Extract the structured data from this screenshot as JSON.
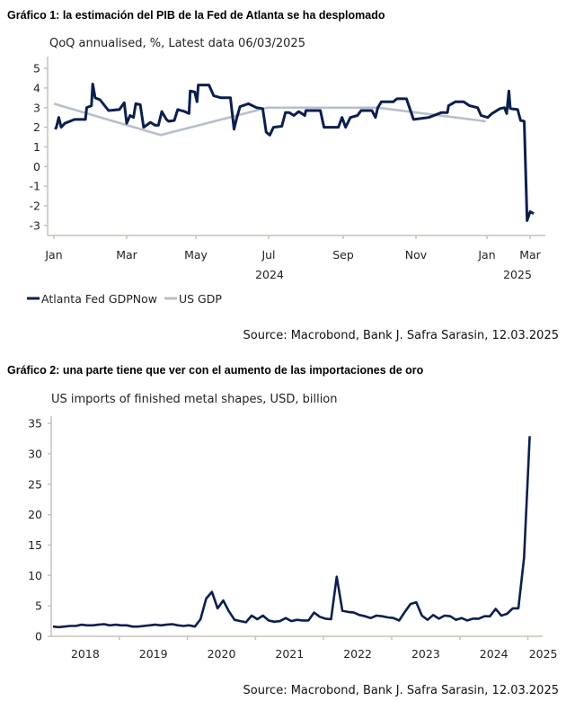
{
  "colors": {
    "gdpnow": "#0b1f4f",
    "usgdp": "#b8bfcc",
    "axis": "#c9c2b8",
    "series2": "#0b1f4f"
  },
  "chart_data": [
    {
      "type": "line",
      "title": "Gráfico 1: la estimación del PIB de la Fed de Atlanta se ha desplomado",
      "subtitle": "QoQ annualised, %, Latest data 06/03/2025",
      "source": "Source: Macrobond, Bank J. Safra Sarasin, 12.03.2025",
      "ylim": [
        -3,
        5
      ],
      "yticks": [
        "5",
        "4",
        "3",
        "2",
        "1",
        "0",
        "-1",
        "-2",
        "-3"
      ],
      "xticks": [
        {
          "date": "2024-01-01",
          "label": "Jan"
        },
        {
          "date": "2024-03-01",
          "label": "Mar"
        },
        {
          "date": "2024-05-01",
          "label": "May"
        },
        {
          "date": "2024-07-01",
          "label": "Jul"
        },
        {
          "date": "2024-09-01",
          "label": "Sep"
        },
        {
          "date": "2024-11-01",
          "label": "Nov"
        },
        {
          "date": "2025-01-01",
          "label": "Jan"
        },
        {
          "date": "2025-03-01",
          "label": "Mar"
        }
      ],
      "year_labels": [
        {
          "label": "2024"
        },
        {
          "label": "2025"
        }
      ],
      "legend": "bottom-left",
      "grid": false,
      "series": [
        {
          "name": "Atlanta Fed GDPNow",
          "points": [
            [
              "2024-01-02",
              1.9
            ],
            [
              "2024-01-03",
              2.0
            ],
            [
              "2024-01-05",
              2.5
            ],
            [
              "2024-01-07",
              2.0
            ],
            [
              "2024-01-10",
              2.2
            ],
            [
              "2024-01-18",
              2.4
            ],
            [
              "2024-01-27",
              2.4
            ],
            [
              "2024-01-28",
              3.0
            ],
            [
              "2024-02-01",
              3.1
            ],
            [
              "2024-02-02",
              4.2
            ],
            [
              "2024-02-04",
              3.5
            ],
            [
              "2024-02-08",
              3.4
            ],
            [
              "2024-02-15",
              2.85
            ],
            [
              "2024-02-24",
              2.9
            ],
            [
              "2024-02-28",
              3.25
            ],
            [
              "2024-03-01",
              2.2
            ],
            [
              "2024-03-04",
              2.6
            ],
            [
              "2024-03-07",
              2.5
            ],
            [
              "2024-03-09",
              3.2
            ],
            [
              "2024-03-13",
              3.15
            ],
            [
              "2024-03-16",
              2.0
            ],
            [
              "2024-03-22",
              2.25
            ],
            [
              "2024-03-26",
              2.1
            ],
            [
              "2024-03-29",
              2.1
            ],
            [
              "2024-04-01",
              2.8
            ],
            [
              "2024-04-05",
              2.4
            ],
            [
              "2024-04-07",
              2.3
            ],
            [
              "2024-04-12",
              2.35
            ],
            [
              "2024-04-15",
              2.9
            ],
            [
              "2024-04-21",
              2.8
            ],
            [
              "2024-04-25",
              2.7
            ],
            [
              "2024-04-26",
              3.85
            ],
            [
              "2024-04-30",
              3.8
            ],
            [
              "2024-05-02",
              3.3
            ],
            [
              "2024-05-03",
              4.15
            ],
            [
              "2024-05-12",
              4.15
            ],
            [
              "2024-05-16",
              3.6
            ],
            [
              "2024-05-22",
              3.5
            ],
            [
              "2024-05-30",
              3.5
            ],
            [
              "2024-06-02",
              1.9
            ],
            [
              "2024-06-04",
              2.4
            ],
            [
              "2024-06-07",
              3.05
            ],
            [
              "2024-06-14",
              3.2
            ],
            [
              "2024-06-21",
              3.0
            ],
            [
              "2024-06-26",
              2.95
            ],
            [
              "2024-06-29",
              1.75
            ],
            [
              "2024-07-02",
              1.6
            ],
            [
              "2024-07-05",
              2.0
            ],
            [
              "2024-07-12",
              2.05
            ],
            [
              "2024-07-15",
              2.75
            ],
            [
              "2024-07-18",
              2.75
            ],
            [
              "2024-07-22",
              2.6
            ],
            [
              "2024-07-26",
              2.8
            ],
            [
              "2024-07-31",
              2.6
            ],
            [
              "2024-08-01",
              2.85
            ],
            [
              "2024-08-13",
              2.85
            ],
            [
              "2024-08-16",
              2.0
            ],
            [
              "2024-08-28",
              2.0
            ],
            [
              "2024-08-31",
              2.5
            ],
            [
              "2024-09-03",
              2.0
            ],
            [
              "2024-09-07",
              2.5
            ],
            [
              "2024-09-13",
              2.6
            ],
            [
              "2024-09-16",
              2.85
            ],
            [
              "2024-09-25",
              2.85
            ],
            [
              "2024-09-28",
              2.5
            ],
            [
              "2024-09-30",
              3.0
            ],
            [
              "2024-10-03",
              3.3
            ],
            [
              "2024-10-13",
              3.3
            ],
            [
              "2024-10-16",
              3.45
            ],
            [
              "2024-10-24",
              3.45
            ],
            [
              "2024-10-30",
              2.4
            ],
            [
              "2024-11-12",
              2.5
            ],
            [
              "2024-11-23",
              2.75
            ],
            [
              "2024-11-28",
              2.75
            ],
            [
              "2024-11-29",
              3.1
            ],
            [
              "2024-12-05",
              3.3
            ],
            [
              "2024-12-12",
              3.3
            ],
            [
              "2024-12-17",
              3.1
            ],
            [
              "2024-12-24",
              3.0
            ],
            [
              "2024-12-27",
              2.6
            ],
            [
              "2025-01-02",
              2.5
            ],
            [
              "2025-01-08",
              2.7
            ],
            [
              "2025-01-19",
              2.95
            ],
            [
              "2025-01-25",
              3.0
            ],
            [
              "2025-01-28",
              2.7
            ],
            [
              "2025-01-31",
              3.85
            ],
            [
              "2025-02-02",
              2.95
            ],
            [
              "2025-02-12",
              2.9
            ],
            [
              "2025-02-16",
              2.35
            ],
            [
              "2025-02-21",
              2.3
            ],
            [
              "2025-02-25",
              -2.75
            ],
            [
              "2025-03-01",
              -2.3
            ],
            [
              "2025-03-06",
              -2.4
            ]
          ]
        },
        {
          "name": "US GDP",
          "points": [
            [
              "2024-01-01",
              3.2
            ],
            [
              "2024-03-31",
              1.6
            ],
            [
              "2024-06-30",
              3.0
            ],
            [
              "2024-09-30",
              3.0
            ],
            [
              "2024-12-31",
              2.3
            ]
          ]
        }
      ]
    },
    {
      "type": "line",
      "title": "Gráfico 2: una parte tiene que ver con el aumento de las importaciones de oro",
      "subtitle": "US imports of finished metal shapes, USD, billion",
      "source": "Source: Macrobond, Bank J. Safra Sarasin, 12.03.2025",
      "ylim": [
        0,
        35
      ],
      "yticks": [
        "35",
        "30",
        "25",
        "20",
        "15",
        "10",
        "5",
        "0"
      ],
      "xticks": [
        "2018",
        "2019",
        "2020",
        "2021",
        "2022",
        "2023",
        "2024",
        "2025"
      ],
      "grid": false,
      "start_month": "2018-01",
      "values": [
        1.6,
        1.5,
        1.6,
        1.7,
        1.7,
        1.9,
        1.8,
        1.8,
        1.9,
        2.0,
        1.8,
        1.9,
        1.8,
        1.8,
        1.6,
        1.6,
        1.7,
        1.8,
        1.9,
        1.8,
        1.9,
        2.0,
        1.8,
        1.7,
        1.8,
        1.6,
        2.8,
        6.2,
        7.3,
        4.6,
        5.9,
        4.1,
        2.7,
        2.5,
        2.3,
        3.4,
        2.8,
        3.4,
        2.6,
        2.4,
        2.5,
        3.0,
        2.5,
        2.7,
        2.6,
        2.6,
        3.9,
        3.2,
        2.9,
        2.8,
        9.8,
        4.2,
        4.0,
        3.9,
        3.5,
        3.3,
        3.0,
        3.4,
        3.3,
        3.1,
        3.0,
        2.6,
        4.0,
        5.3,
        5.6,
        3.4,
        2.7,
        3.5,
        2.9,
        3.4,
        3.3,
        2.7,
        3.0,
        2.6,
        2.9,
        2.9,
        3.3,
        3.3,
        4.5,
        3.4,
        3.7,
        4.6,
        4.6,
        12.9,
        32.9
      ]
    }
  ]
}
